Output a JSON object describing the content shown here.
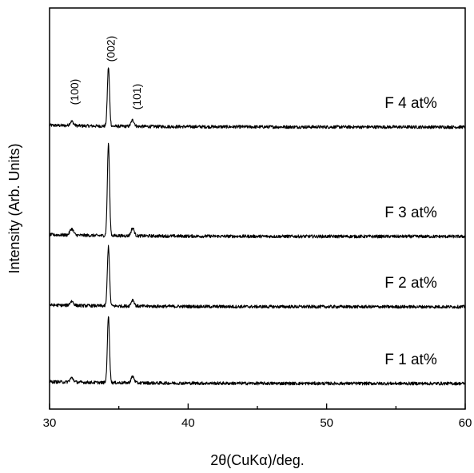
{
  "chart_data": {
    "type": "line",
    "title": "",
    "xlabel": "2θ(CuKα)/deg.",
    "ylabel": "Intensity (Arb. Units)",
    "xlim": [
      30,
      60
    ],
    "x_ticks": [
      30,
      40,
      50,
      60
    ],
    "grid": false,
    "legend": "none",
    "line_color": "#000000",
    "peak_labels": [
      {
        "text": "(100)",
        "x": 31.8
      },
      {
        "text": "(002)",
        "x": 34.4
      },
      {
        "text": "(101)",
        "x": 36.3
      }
    ],
    "series": [
      {
        "name": "F 4 at%",
        "baseline": 4,
        "peaks": [
          {
            "x": 31.6,
            "h": 0.06
          },
          {
            "x": 34.25,
            "h": 0.84
          },
          {
            "x": 36.0,
            "h": 0.09
          }
        ]
      },
      {
        "name": "F 3 at%",
        "baseline": 3,
        "peaks": [
          {
            "x": 31.6,
            "h": 0.09
          },
          {
            "x": 34.25,
            "h": 1.31
          },
          {
            "x": 36.0,
            "h": 0.11
          }
        ]
      },
      {
        "name": "F 2 at%",
        "baseline": 2,
        "peaks": [
          {
            "x": 31.6,
            "h": 0.06
          },
          {
            "x": 34.25,
            "h": 0.85
          },
          {
            "x": 36.0,
            "h": 0.09
          }
        ]
      },
      {
        "name": "F 1 at%",
        "baseline": 1,
        "peaks": [
          {
            "x": 31.6,
            "h": 0.06
          },
          {
            "x": 34.25,
            "h": 0.94
          },
          {
            "x": 36.0,
            "h": 0.09
          }
        ]
      }
    ]
  }
}
